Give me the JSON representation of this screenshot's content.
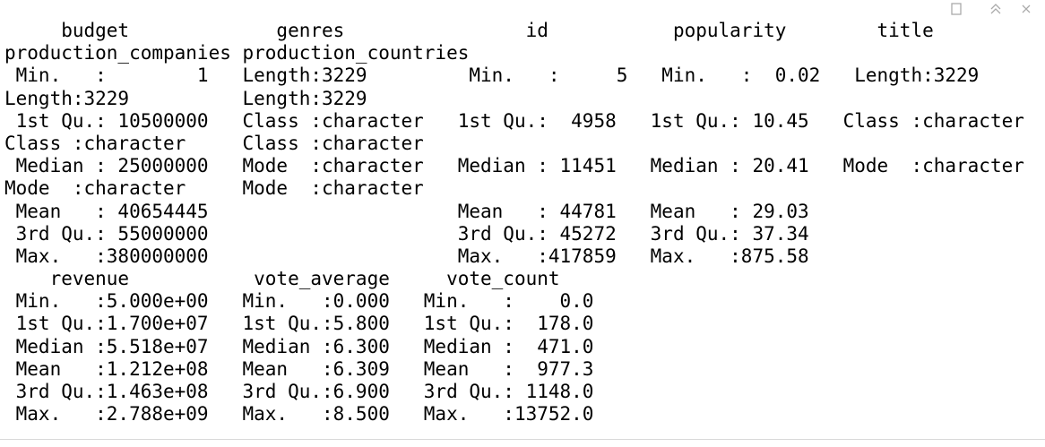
{
  "console": {
    "lines": [
      "     budget             genres                id           popularity        title",
      "production_companies production_countries",
      " Min.   :        1   Length:3229         Min.   :     5   Min.   :  0.02   Length:3229",
      "Length:3229          Length:3229",
      " 1st Qu.: 10500000   Class :character   1st Qu.:  4958   1st Qu.: 10.45   Class :character",
      "Class :character     Class :character",
      " Median : 25000000   Mode  :character   Median : 11451   Median : 20.41   Mode  :character",
      "Mode  :character     Mode  :character",
      " Mean   : 40654445                      Mean   : 44781   Mean   : 29.03",
      " 3rd Qu.: 55000000                      3rd Qu.: 45272   3rd Qu.: 37.34",
      " Max.   :380000000                      Max.   :417859   Max.   :875.58",
      "    revenue           vote_average     vote_count",
      " Min.   :5.000e+00   Min.   :0.000   Min.   :    0.0",
      " 1st Qu.:1.700e+07   1st Qu.:5.800   1st Qu.:  178.0",
      " Median :5.518e+07   Median :6.300   Median :  471.0",
      " Mean   :1.212e+08   Mean   :6.309   Mean   :  977.3",
      " 3rd Qu.:1.463e+08   3rd Qu.:6.900   3rd Qu.: 1148.0",
      " Max.   :2.788e+09   Max.   :8.500   Max.   :13752.0"
    ]
  }
}
